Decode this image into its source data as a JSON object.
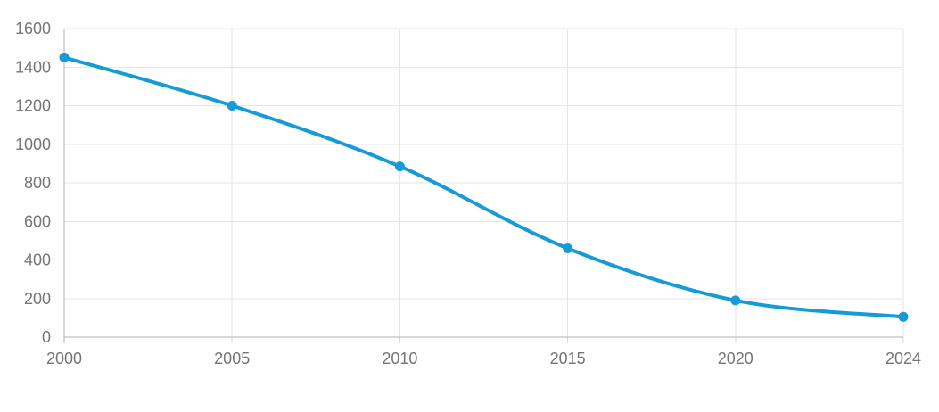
{
  "chart_data": {
    "type": "line",
    "title": "",
    "xlabel": "",
    "ylabel": "",
    "categories": [
      "2000",
      "2005",
      "2010",
      "2015",
      "2020",
      "2024"
    ],
    "series": [
      {
        "name": "series-1",
        "values": [
          1450,
          1200,
          885,
          460,
          190,
          105
        ]
      }
    ],
    "ylim": [
      0,
      1600
    ],
    "y_ticks": [
      0,
      200,
      400,
      600,
      800,
      1000,
      1200,
      1400,
      1600
    ],
    "y_tick_labels": [
      "0",
      "200",
      "400",
      "600",
      "800",
      "1000",
      "1200",
      "1400",
      "1600"
    ],
    "grid": true,
    "legend_position": "none",
    "colors": {
      "line": "#169bd7",
      "point": "#169bd7",
      "grid": "#e6e6e6",
      "axis": "#b1b1b1",
      "tick": "#d9d9d9",
      "label": "#757575",
      "background": "#ffffff"
    }
  }
}
